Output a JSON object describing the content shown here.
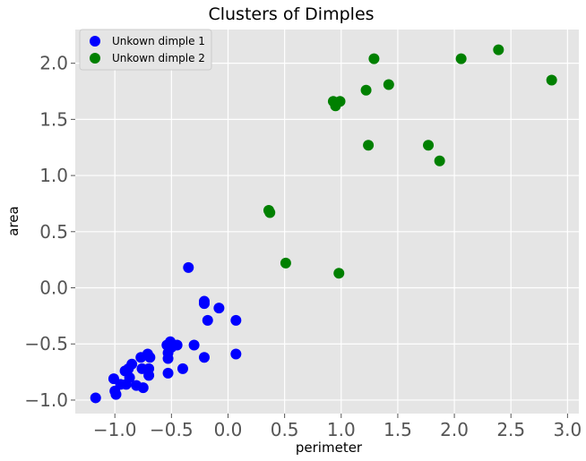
{
  "chart_data": {
    "type": "scatter",
    "title": "Clusters of Dimples",
    "xlabel": "perimeter",
    "ylabel": "area",
    "xlim": [
      -1.35,
      3.1
    ],
    "ylim": [
      -1.12,
      2.3
    ],
    "xticks": [
      -1.0,
      -0.5,
      0.0,
      0.5,
      1.0,
      1.5,
      2.0,
      2.5,
      3.0
    ],
    "yticks": [
      -1.0,
      -0.5,
      0.0,
      0.5,
      1.0,
      1.5,
      2.0
    ],
    "xtick_labels": [
      "−1.0",
      "−0.5",
      "0.0",
      "0.5",
      "1.0",
      "1.5",
      "2.0",
      "2.5",
      "3.0"
    ],
    "ytick_labels": [
      "−1.0",
      "−0.5",
      "0.0",
      "0.5",
      "1.0",
      "1.5",
      "2.0"
    ],
    "grid": true,
    "legend_position": "top-left",
    "background_color": "#e5e5e5",
    "series": [
      {
        "name": "Unkown dimple 1",
        "color": "#0000ff",
        "points": [
          [
            -1.17,
            -0.98
          ],
          [
            -1.01,
            -0.81
          ],
          [
            -1.0,
            -0.92
          ],
          [
            -0.99,
            -0.95
          ],
          [
            -0.95,
            -0.86
          ],
          [
            -0.91,
            -0.74
          ],
          [
            -0.9,
            -0.86
          ],
          [
            -0.88,
            -0.72
          ],
          [
            -0.87,
            -0.8
          ],
          [
            -0.85,
            -0.68
          ],
          [
            -0.81,
            -0.87
          ],
          [
            -0.77,
            -0.62
          ],
          [
            -0.76,
            -0.72
          ],
          [
            -0.75,
            -0.89
          ],
          [
            -0.71,
            -0.59
          ],
          [
            -0.7,
            -0.72
          ],
          [
            -0.7,
            -0.78
          ],
          [
            -0.69,
            -0.62
          ],
          [
            -0.54,
            -0.51
          ],
          [
            -0.53,
            -0.58
          ],
          [
            -0.53,
            -0.63
          ],
          [
            -0.53,
            -0.76
          ],
          [
            -0.51,
            -0.48
          ],
          [
            -0.5,
            -0.53
          ],
          [
            -0.45,
            -0.51
          ],
          [
            -0.4,
            -0.72
          ],
          [
            -0.35,
            0.18
          ],
          [
            -0.3,
            -0.51
          ],
          [
            -0.21,
            -0.12
          ],
          [
            -0.21,
            -0.14
          ],
          [
            -0.21,
            -0.62
          ],
          [
            -0.18,
            -0.29
          ],
          [
            -0.08,
            -0.18
          ],
          [
            0.07,
            -0.29
          ],
          [
            0.07,
            -0.59
          ]
        ]
      },
      {
        "name": "Unkown dimple 2",
        "color": "#008000",
        "points": [
          [
            0.36,
            0.69
          ],
          [
            0.37,
            0.67
          ],
          [
            0.51,
            0.22
          ],
          [
            0.93,
            1.66
          ],
          [
            0.95,
            1.62
          ],
          [
            0.98,
            0.13
          ],
          [
            0.99,
            1.66
          ],
          [
            1.22,
            1.76
          ],
          [
            1.24,
            1.27
          ],
          [
            1.29,
            2.04
          ],
          [
            1.42,
            1.81
          ],
          [
            1.77,
            1.27
          ],
          [
            1.87,
            1.13
          ],
          [
            2.06,
            2.04
          ],
          [
            2.39,
            2.12
          ],
          [
            2.86,
            1.85
          ]
        ]
      }
    ]
  }
}
